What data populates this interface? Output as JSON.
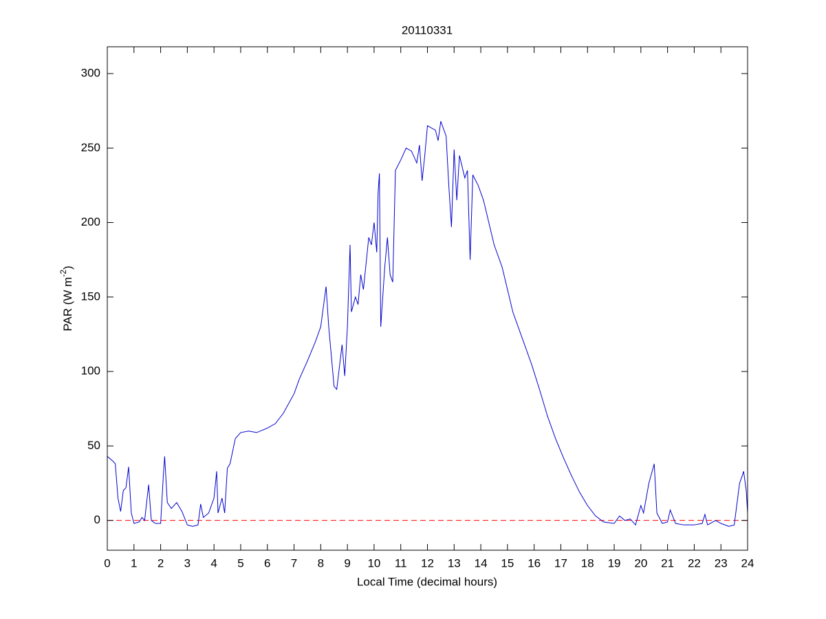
{
  "chart_data": {
    "type": "line",
    "title": "20110331",
    "xlabel": "Local Time (decimal hours)",
    "ylabel": {
      "text": "PAR (W m",
      "sup": "-2",
      "tail": ")"
    },
    "xlim": [
      0,
      24
    ],
    "xticks": [
      0,
      1,
      2,
      3,
      4,
      5,
      6,
      7,
      8,
      9,
      10,
      11,
      12,
      13,
      14,
      15,
      16,
      17,
      18,
      19,
      20,
      21,
      22,
      23,
      24
    ],
    "ylim": [
      -20,
      318
    ],
    "yticks": [
      0,
      50,
      100,
      150,
      200,
      250,
      300
    ],
    "reference_line": {
      "value": 0,
      "color": "#ff0000"
    },
    "series": [
      {
        "color": "#0000cc",
        "x": [
          0,
          0.2,
          0.3,
          0.4,
          0.5,
          0.6,
          0.7,
          0.8,
          0.9,
          1.0,
          1.2,
          1.3,
          1.4,
          1.55,
          1.65,
          1.8,
          2.0,
          2.1,
          2.15,
          2.25,
          2.4,
          2.6,
          2.8,
          3.0,
          3.2,
          3.4,
          3.5,
          3.6,
          3.8,
          4.0,
          4.1,
          4.15,
          4.3,
          4.4,
          4.5,
          4.6,
          4.8,
          5.0,
          5.3,
          5.6,
          6.0,
          6.3,
          6.6,
          7.0,
          7.2,
          7.5,
          7.8,
          8.0,
          8.2,
          8.3,
          8.5,
          8.6,
          8.8,
          8.9,
          9.0,
          9.1,
          9.15,
          9.3,
          9.4,
          9.5,
          9.6,
          9.8,
          9.9,
          10.0,
          10.1,
          10.15,
          10.2,
          10.25,
          10.4,
          10.5,
          10.6,
          10.7,
          10.8,
          11.0,
          11.2,
          11.4,
          11.6,
          11.7,
          11.8,
          11.9,
          12.0,
          12.3,
          12.4,
          12.5,
          12.7,
          12.8,
          12.9,
          13.0,
          13.1,
          13.2,
          13.4,
          13.5,
          13.6,
          13.7,
          13.9,
          14.1,
          14.3,
          14.5,
          14.8,
          15.0,
          15.2,
          15.4,
          15.6,
          15.9,
          16.2,
          16.5,
          16.8,
          17.1,
          17.4,
          17.7,
          18.0,
          18.3,
          18.6,
          19.0,
          19.2,
          19.4,
          19.6,
          19.8,
          20.0,
          20.1,
          20.3,
          20.5,
          20.6,
          20.8,
          21.0,
          21.1,
          21.3,
          21.6,
          22.0,
          22.3,
          22.4,
          22.5,
          22.8,
          23.0,
          23.3,
          23.5,
          23.7,
          23.8,
          23.85,
          23.95,
          24
        ],
        "values": [
          43,
          40,
          38,
          15,
          6,
          20,
          22,
          36,
          5,
          -2,
          -1,
          2,
          0,
          24,
          0,
          -2,
          -2,
          30,
          43,
          12,
          8,
          12,
          6,
          -3,
          -4,
          -3,
          11,
          2,
          5,
          15,
          33,
          5,
          15,
          5,
          35,
          38,
          55,
          59,
          60,
          59,
          62,
          65,
          72,
          85,
          95,
          107,
          120,
          130,
          157,
          130,
          90,
          88,
          118,
          97,
          130,
          185,
          140,
          150,
          145,
          165,
          155,
          190,
          185,
          200,
          180,
          220,
          233,
          130,
          170,
          190,
          165,
          160,
          235,
          242,
          250,
          248,
          240,
          252,
          228,
          245,
          265,
          262,
          255,
          268,
          258,
          225,
          197,
          249,
          215,
          245,
          230,
          235,
          175,
          232,
          225,
          215,
          200,
          185,
          170,
          155,
          140,
          130,
          120,
          105,
          88,
          70,
          55,
          42,
          30,
          19,
          10,
          3,
          -1,
          -2,
          3,
          0,
          1,
          -3,
          10,
          5,
          25,
          38,
          5,
          -2,
          -1,
          7,
          -2,
          -3,
          -3,
          -2,
          4,
          -3,
          0,
          -2,
          -4,
          -3,
          25,
          30,
          33,
          20,
          5
        ]
      }
    ]
  }
}
